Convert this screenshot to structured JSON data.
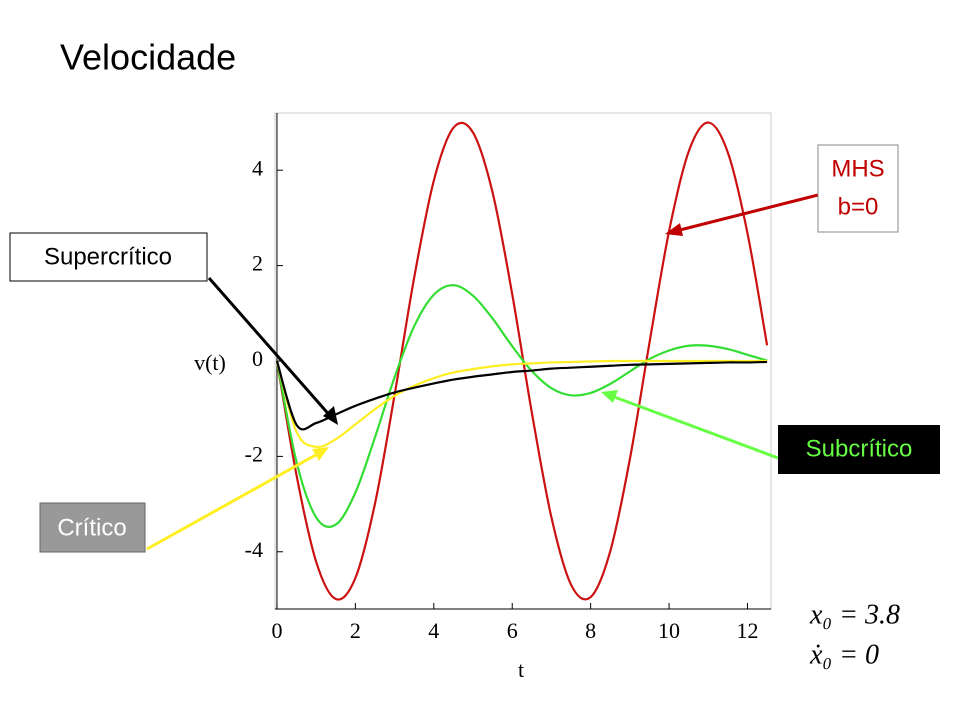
{
  "chart_data": {
    "type": "line",
    "title": "Velocidade",
    "x_label": "t",
    "y_label": "v(t)",
    "x": [
      0,
      0.5,
      1,
      1.5,
      2,
      2.5,
      3,
      3.5,
      4,
      4.5,
      5,
      5.5,
      6,
      6.5,
      7,
      7.5,
      8,
      8.5,
      9,
      9.5,
      10,
      10.5,
      11,
      11.5,
      12,
      12.5
    ],
    "series": [
      {
        "color": "#cc1111",
        "values": [
          0,
          -2.4,
          -4.21,
          -4.99,
          -4.55,
          -2.99,
          -0.71,
          1.75,
          3.78,
          4.89,
          4.79,
          3.53,
          1.4,
          -1.08,
          -3.28,
          -4.69,
          -4.95,
          -3.99,
          -2.06,
          0.38,
          2.72,
          4.39,
          5.0,
          4.37,
          2.68,
          0.33
        ]
      },
      {
        "color": "#33dd33",
        "values": [
          0,
          -2.12,
          -3.28,
          -3.43,
          -2.76,
          -1.6,
          -0.34,
          0.73,
          1.39,
          1.59,
          1.37,
          0.89,
          0.31,
          -0.21,
          -0.57,
          -0.72,
          -0.67,
          -0.48,
          -0.22,
          0.04,
          0.22,
          0.32,
          0.32,
          0.25,
          0.13,
          0.01
        ]
      },
      {
        "color": "#ffee22",
        "values": [
          0,
          -1.49,
          -1.8,
          -1.64,
          -1.33,
          -1.01,
          -0.73,
          -0.52,
          -0.36,
          -0.24,
          -0.17,
          -0.11,
          -0.07,
          -0.05,
          -0.03,
          -0.02,
          -0.01,
          0,
          0,
          0,
          0,
          0,
          0,
          0,
          0,
          0
        ]
      },
      {
        "color": "#000000",
        "values": [
          0,
          -1.34,
          -1.3,
          -1.12,
          -0.94,
          -0.79,
          -0.66,
          -0.56,
          -0.47,
          -0.39,
          -0.33,
          -0.28,
          -0.23,
          -0.2,
          -0.16,
          -0.14,
          -0.12,
          -0.1,
          -0.08,
          -0.07,
          -0.06,
          -0.05,
          -0.04,
          -0.03,
          -0.03,
          -0.02
        ]
      }
    ],
    "xlim": [
      -0.05,
      12.6
    ],
    "ylim": [
      -5.2,
      5.2
    ],
    "xticks": [
      0,
      2,
      4,
      6,
      8,
      10,
      12
    ],
    "yticks": [
      -4,
      -2,
      0,
      2,
      4
    ],
    "annotations": {
      "mhs": [
        "MHS",
        "b=0"
      ],
      "supercritical": "Supercrítico",
      "subcritical": "Subcrítico",
      "critical": "Crítico",
      "initial_conditions": [
        "x₀ = 3.8",
        "ẋ₀ = 0"
      ]
    }
  }
}
